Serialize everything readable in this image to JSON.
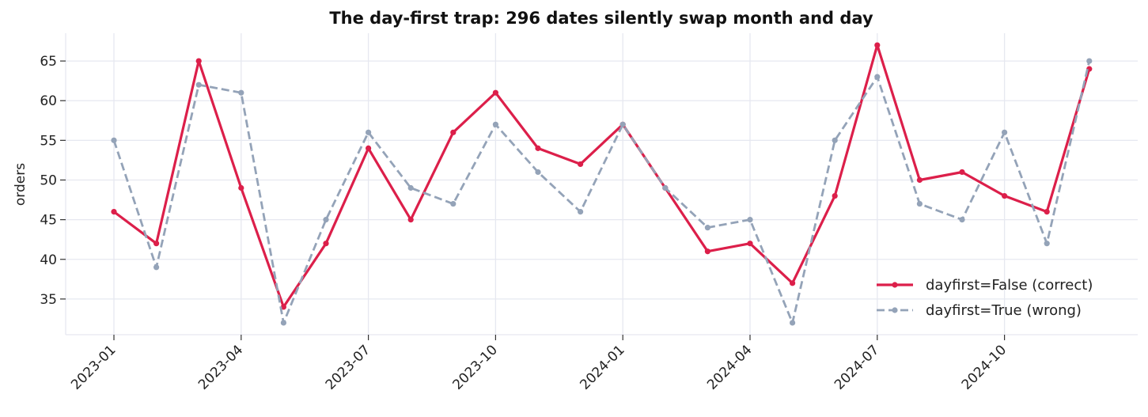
{
  "chart_data": {
    "type": "line",
    "title": "The day-first trap: 296 dates silently swap month and day",
    "xlabel": "",
    "ylabel": "orders",
    "x": [
      "2023-01",
      "2023-02",
      "2023-03",
      "2023-04",
      "2023-05",
      "2023-06",
      "2023-07",
      "2023-08",
      "2023-09",
      "2023-10",
      "2023-11",
      "2023-12",
      "2024-01",
      "2024-02",
      "2024-03",
      "2024-04",
      "2024-05",
      "2024-06",
      "2024-07",
      "2024-08",
      "2024-09",
      "2024-10",
      "2024-11",
      "2024-12"
    ],
    "x_ticks": [
      "2023-01",
      "2023-04",
      "2023-07",
      "2023-10",
      "2024-01",
      "2024-04",
      "2024-07",
      "2024-10"
    ],
    "y_ticks": [
      35,
      40,
      45,
      50,
      55,
      60,
      65
    ],
    "ylim": [
      30.5,
      68.5
    ],
    "grid": true,
    "legend_position": "lower-right",
    "series": [
      {
        "name": "dayfirst=False (correct)",
        "color": "#dc1f4a",
        "style": "solid",
        "values": [
          46,
          42,
          65,
          49,
          34,
          42,
          54,
          45,
          56,
          61,
          54,
          52,
          57,
          49,
          41,
          42,
          37,
          48,
          67,
          50,
          51,
          48,
          46,
          64
        ]
      },
      {
        "name": "dayfirst=True (wrong)",
        "color": "#94a3b8",
        "style": "dashed",
        "values": [
          55,
          39,
          62,
          61,
          32,
          45,
          56,
          49,
          47,
          57,
          51,
          46,
          57,
          49,
          44,
          45,
          32,
          55,
          63,
          47,
          45,
          56,
          42,
          65
        ]
      }
    ]
  }
}
